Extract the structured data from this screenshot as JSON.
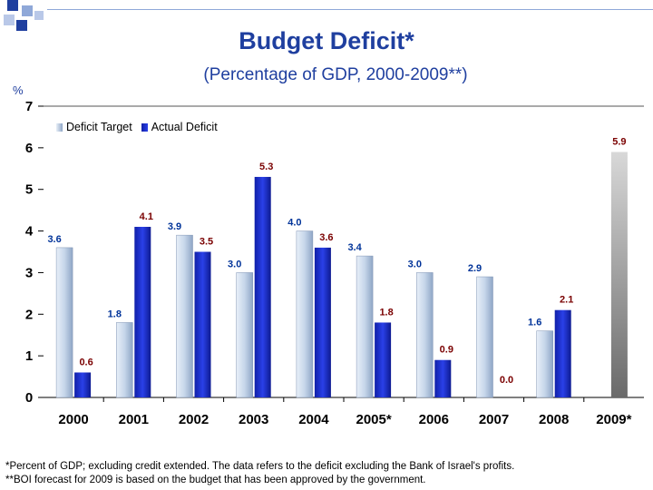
{
  "header": {
    "title": "Budget Deficit*",
    "subtitle": "(Percentage of GDP, 2000-2009**)"
  },
  "footnotes": {
    "line1": "*Percent of GDP; excluding credit extended. The data refers to the deficit excluding the Bank of Israel's profits.",
    "line2": "**BOI forecast for 2009 is based on the budget that has been approved by the government."
  },
  "colors": {
    "title": "#1f3f9f",
    "target_series": "#c8d8ea",
    "actual_series": "#1a2fd0",
    "forecast_bar": "#b0b0b0",
    "label_text": "#003399",
    "actual_label_text": "#7a0000"
  },
  "chart_data": {
    "type": "bar",
    "title": "Budget Deficit*",
    "subtitle": "(Percentage of GDP, 2000-2009**)",
    "xlabel": "",
    "ylabel": "%",
    "ylim": [
      0,
      7
    ],
    "yticks": [
      "0",
      "1",
      "2",
      "3",
      "4",
      "5",
      "6",
      "7"
    ],
    "grid": false,
    "legend_position": "top-left",
    "categories": [
      "2000",
      "2001",
      "2002",
      "2003",
      "2004",
      "2005*",
      "2006",
      "2007",
      "2008",
      "2009*"
    ],
    "series": [
      {
        "name": "Deficit Target",
        "values": [
          3.6,
          1.8,
          3.9,
          3.0,
          4.0,
          3.4,
          3.0,
          2.9,
          1.6,
          null
        ],
        "labels": [
          "3.6",
          "1.8",
          "3.9",
          "3.0",
          "4.0",
          "3.4",
          "3.0",
          "2.9",
          "1.6",
          ""
        ]
      },
      {
        "name": "Actual Deficit",
        "values": [
          0.6,
          4.1,
          3.5,
          5.3,
          3.6,
          1.8,
          0.9,
          0.0,
          2.1,
          5.9
        ],
        "labels": [
          "0.6",
          "4.1",
          "3.5",
          "5.3",
          "3.6",
          "1.8",
          "0.9",
          "0.0",
          "2.1",
          "5.9"
        ]
      }
    ]
  }
}
